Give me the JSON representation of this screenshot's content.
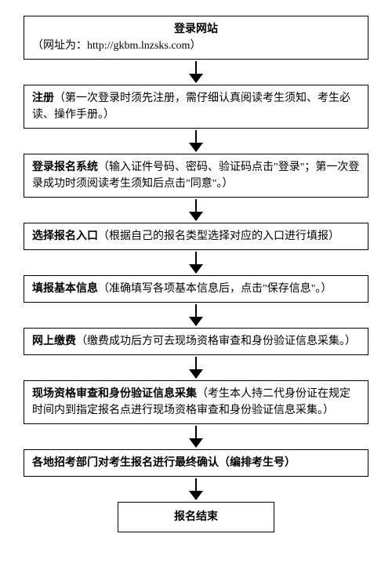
{
  "flowchart": {
    "type": "flowchart",
    "direction": "vertical",
    "box_border_color": "#000000",
    "background_color": "#ffffff",
    "text_color": "#000000",
    "font_size": 14,
    "box_width_full": 440,
    "box_width_small": 200,
    "arrow_color": "#000000",
    "steps": [
      {
        "title": "登录网站",
        "body": "（网址为：http://gkbm.lnzsks.com）",
        "title_centered": true
      },
      {
        "title": "注册",
        "body": "（第一次登录时须先注册，需仔细认真阅读考生须知、考生必读、操作手册。）"
      },
      {
        "title": "登录报名系统",
        "body": "（输入证件号码、密码、验证码点击\"登录\"；第一次登录成功时须阅读考生须知后点击\"同意\"。）"
      },
      {
        "title": "选择报名入口",
        "body": "（根据自己的报名类型选择对应的入口进行填报）"
      },
      {
        "title": "填报基本信息",
        "body": "（准确填写各项基本信息后，点击\"保存信息\"。）"
      },
      {
        "title": "网上缴费",
        "body": "（缴费成功后方可去现场资格审查和身份验证信息采集。）"
      },
      {
        "title": "现场资格审查和身份验证信息采集",
        "body": "（考生本人持二代身份证在规定时间内到指定报名点进行现场资格审查和身份验证信息采集。）"
      },
      {
        "title": "各地招考部门对考生报名进行最终确认（编排考生号）",
        "body": "",
        "full_bold": true
      },
      {
        "title": "报名结束",
        "body": "",
        "small": true
      }
    ]
  }
}
